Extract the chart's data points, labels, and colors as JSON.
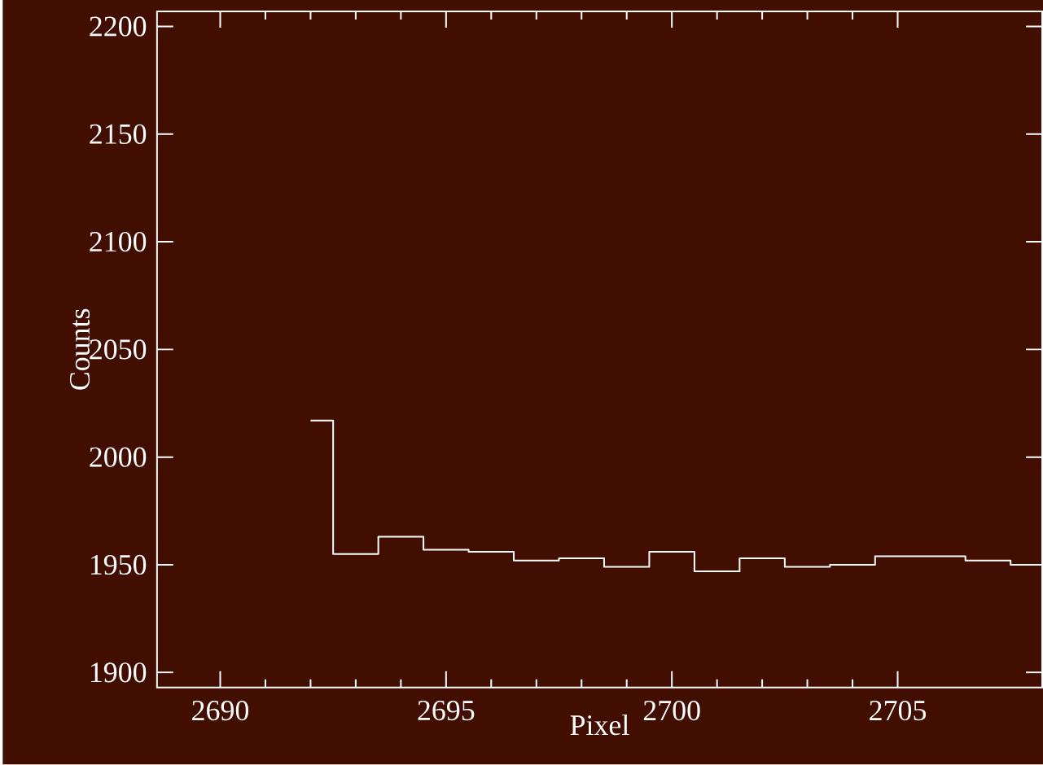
{
  "chart_data": {
    "type": "step",
    "xlabel": "Pixel",
    "ylabel": "Counts",
    "x": [
      2692,
      2693,
      2694,
      2695,
      2696,
      2697,
      2698,
      2699,
      2700,
      2701,
      2702,
      2703,
      2704,
      2705,
      2706,
      2707,
      2708
    ],
    "series": [
      {
        "color": "#ffffff",
        "values": [
          2017,
          1955,
          1963,
          1957,
          1956,
          1952,
          1953,
          1949,
          1956,
          1947,
          1953,
          1949,
          1950,
          1954,
          1954,
          1952,
          1950
        ]
      }
    ],
    "xlim": [
      2688.6,
      2708.2
    ],
    "ylim": [
      1893,
      2207
    ],
    "xticks": [
      2690,
      2695,
      2700,
      2705
    ],
    "yticks": [
      1900,
      1950,
      2000,
      2050,
      2100,
      2150,
      2200
    ],
    "grid": false,
    "marker": "none",
    "line_style": "solid"
  }
}
